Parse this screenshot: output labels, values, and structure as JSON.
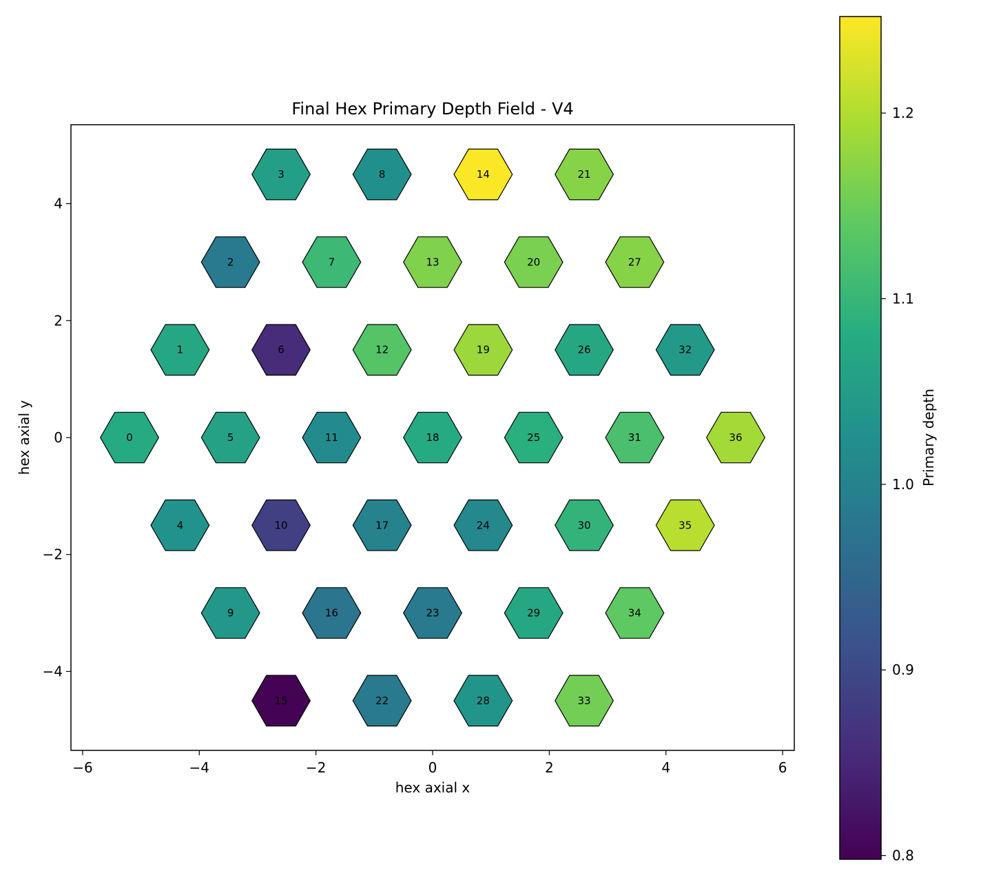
{
  "chart_data": {
    "type": "heatmap",
    "title": "Final Hex Primary Depth Field - V4",
    "xlabel": "hex axial x",
    "ylabel": "hex axial y",
    "xlim": [
      -6.2,
      6.2
    ],
    "ylim": [
      -5.35,
      5.35
    ],
    "xticks": [
      -6,
      -4,
      -2,
      0,
      2,
      4,
      6
    ],
    "yticks": [
      -4,
      -2,
      0,
      2,
      4
    ],
    "colorbar": {
      "label": "Primary depth",
      "range": [
        0.798,
        1.252
      ],
      "ticks": [
        0.8,
        0.9,
        1.0,
        1.1,
        1.2
      ],
      "tick_labels": [
        "0.8",
        "0.9",
        "1.0",
        "1.1",
        "1.2"
      ],
      "colormap": "viridis"
    },
    "cells": [
      {
        "id": "0",
        "x": -5.196,
        "y": 0.0,
        "value": 1.075
      },
      {
        "id": "1",
        "x": -4.33,
        "y": 1.5,
        "value": 1.07
      },
      {
        "id": "2",
        "x": -3.464,
        "y": 3.0,
        "value": 0.985
      },
      {
        "id": "3",
        "x": -2.598,
        "y": 4.5,
        "value": 1.055
      },
      {
        "id": "4",
        "x": -4.33,
        "y": -1.5,
        "value": 1.03
      },
      {
        "id": "5",
        "x": -3.464,
        "y": 0.0,
        "value": 1.06
      },
      {
        "id": "6",
        "x": -2.598,
        "y": 1.5,
        "value": 0.855
      },
      {
        "id": "7",
        "x": -1.732,
        "y": 3.0,
        "value": 1.105
      },
      {
        "id": "8",
        "x": -0.866,
        "y": 4.5,
        "value": 1.025
      },
      {
        "id": "9",
        "x": -3.464,
        "y": -3.0,
        "value": 1.04
      },
      {
        "id": "10",
        "x": -2.598,
        "y": -1.5,
        "value": 0.885
      },
      {
        "id": "11",
        "x": -1.732,
        "y": 0.0,
        "value": 1.015
      },
      {
        "id": "12",
        "x": -0.866,
        "y": 1.5,
        "value": 1.13
      },
      {
        "id": "13",
        "x": 0.0,
        "y": 3.0,
        "value": 1.165
      },
      {
        "id": "14",
        "x": 0.866,
        "y": 4.5,
        "value": 1.25
      },
      {
        "id": "15",
        "x": -2.598,
        "y": -4.5,
        "value": 0.8
      },
      {
        "id": "16",
        "x": -1.732,
        "y": -3.0,
        "value": 0.975
      },
      {
        "id": "17",
        "x": -0.866,
        "y": -1.5,
        "value": 1.0
      },
      {
        "id": "18",
        "x": 0.0,
        "y": 0.0,
        "value": 1.075
      },
      {
        "id": "19",
        "x": 0.866,
        "y": 1.5,
        "value": 1.185
      },
      {
        "id": "20",
        "x": 1.732,
        "y": 3.0,
        "value": 1.16
      },
      {
        "id": "21",
        "x": 2.598,
        "y": 4.5,
        "value": 1.17
      },
      {
        "id": "22",
        "x": -0.866,
        "y": -4.5,
        "value": 0.985
      },
      {
        "id": "23",
        "x": 0.0,
        "y": -3.0,
        "value": 0.985
      },
      {
        "id": "24",
        "x": 0.866,
        "y": -1.5,
        "value": 1.01
      },
      {
        "id": "25",
        "x": 1.732,
        "y": 0.0,
        "value": 1.085
      },
      {
        "id": "26",
        "x": 2.598,
        "y": 1.5,
        "value": 1.07
      },
      {
        "id": "27",
        "x": 3.464,
        "y": 3.0,
        "value": 1.17
      },
      {
        "id": "28",
        "x": 0.866,
        "y": -4.5,
        "value": 1.035
      },
      {
        "id": "29",
        "x": 1.732,
        "y": -3.0,
        "value": 1.07
      },
      {
        "id": "30",
        "x": 2.598,
        "y": -1.5,
        "value": 1.095
      },
      {
        "id": "31",
        "x": 3.464,
        "y": 0.0,
        "value": 1.12
      },
      {
        "id": "32",
        "x": 4.33,
        "y": 1.5,
        "value": 1.045
      },
      {
        "id": "33",
        "x": 2.598,
        "y": -4.5,
        "value": 1.155
      },
      {
        "id": "34",
        "x": 3.464,
        "y": -3.0,
        "value": 1.14
      },
      {
        "id": "35",
        "x": 4.33,
        "y": -1.5,
        "value": 1.205
      },
      {
        "id": "36",
        "x": 5.196,
        "y": 0.0,
        "value": 1.19
      }
    ]
  }
}
